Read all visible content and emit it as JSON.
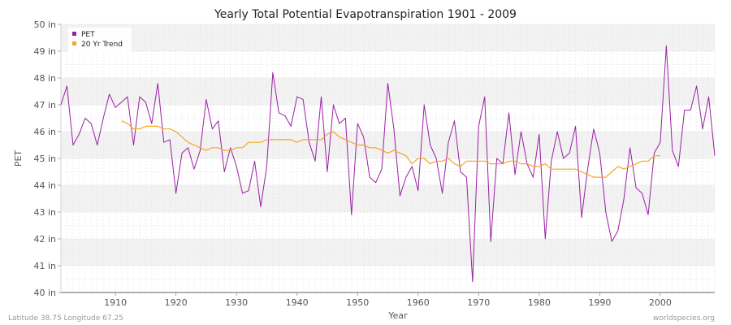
{
  "chart_data": {
    "type": "line",
    "title": "Yearly Total Potential Evapotranspiration 1901 - 2009",
    "xlabel": "Year",
    "ylabel": "PET",
    "xlim": [
      1901,
      2009
    ],
    "ylim": [
      40,
      50
    ],
    "x_ticks": [
      "1910",
      "1920",
      "1930",
      "1940",
      "1950",
      "1960",
      "1970",
      "1980",
      "1990",
      "2000"
    ],
    "y_ticks": [
      "40 in",
      "41 in",
      "42 in",
      "43 in",
      "44 in",
      "45 in",
      "46 in",
      "47 in",
      "48 in",
      "49 in",
      "50 in"
    ],
    "grid": true,
    "legend_position": "top-left",
    "series": [
      {
        "name": "PET",
        "color": "#9b1fa3",
        "x_start": 1901,
        "values": [
          47.0,
          47.7,
          45.5,
          45.9,
          46.5,
          46.3,
          45.5,
          46.5,
          47.4,
          46.9,
          47.1,
          47.3,
          45.5,
          47.3,
          47.1,
          46.3,
          47.8,
          45.6,
          45.7,
          43.7,
          45.2,
          45.4,
          44.6,
          45.3,
          47.2,
          46.1,
          46.4,
          44.5,
          45.4,
          44.7,
          43.7,
          43.8,
          44.9,
          43.2,
          44.7,
          48.2,
          46.7,
          46.6,
          46.2,
          47.3,
          47.2,
          45.6,
          44.9,
          47.3,
          44.5,
          47.0,
          46.3,
          46.5,
          42.9,
          46.3,
          45.8,
          44.3,
          44.1,
          44.6,
          47.8,
          46.1,
          43.6,
          44.3,
          44.7,
          43.8,
          47.0,
          45.5,
          45.0,
          43.7,
          45.6,
          46.4,
          44.5,
          44.3,
          40.4,
          46.2,
          47.3,
          41.9,
          45.0,
          44.8,
          46.7,
          44.4,
          46.0,
          44.8,
          44.3,
          45.9,
          42.0,
          44.9,
          46.0,
          45.0,
          45.2,
          46.2,
          42.8,
          44.6,
          46.1,
          45.2,
          43.0,
          41.9,
          42.3,
          43.5,
          45.4,
          43.9,
          43.7,
          42.9,
          45.2,
          45.6,
          49.2,
          45.3,
          44.7,
          46.8,
          46.8,
          47.7,
          46.1,
          47.3,
          45.1
        ]
      },
      {
        "name": "20 Yr Trend",
        "color": "#f5a623",
        "x_start": 1911,
        "values": [
          46.4,
          46.3,
          46.1,
          46.1,
          46.2,
          46.2,
          46.2,
          46.1,
          46.1,
          46.0,
          45.8,
          45.6,
          45.5,
          45.4,
          45.3,
          45.4,
          45.4,
          45.3,
          45.3,
          45.4,
          45.4,
          45.6,
          45.6,
          45.6,
          45.7,
          45.7,
          45.7,
          45.7,
          45.7,
          45.6,
          45.7,
          45.7,
          45.7,
          45.7,
          45.9,
          46.0,
          45.8,
          45.7,
          45.6,
          45.5,
          45.5,
          45.4,
          45.4,
          45.3,
          45.2,
          45.3,
          45.2,
          45.1,
          44.8,
          45.0,
          45.0,
          44.8,
          44.9,
          44.9,
          45.0,
          44.8,
          44.7,
          44.9,
          44.9,
          44.9,
          44.9,
          44.8,
          44.8,
          44.8,
          44.9,
          44.9,
          44.8,
          44.8,
          44.7,
          44.7,
          44.8,
          44.6,
          44.6,
          44.6,
          44.6,
          44.6,
          44.5,
          44.4,
          44.3,
          44.3,
          44.3,
          44.5,
          44.7,
          44.6,
          44.7,
          44.8,
          44.9,
          44.9,
          45.1,
          45.1
        ]
      }
    ]
  },
  "footer": {
    "left": "Latitude 38.75 Longitude 67.25",
    "right": "worldspecies.org"
  }
}
